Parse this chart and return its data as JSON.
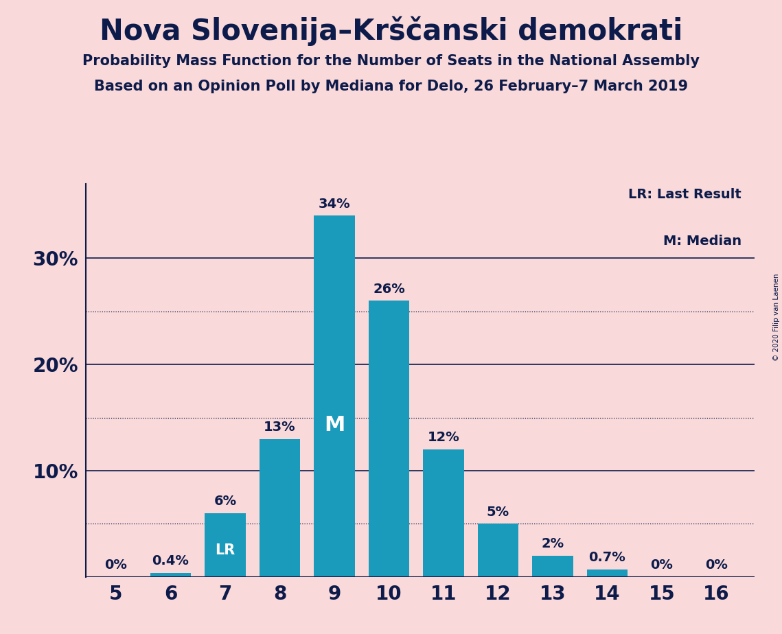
{
  "title": "Nova Slovenija–Krščanski demokrati",
  "subtitle1": "Probability Mass Function for the Number of Seats in the National Assembly",
  "subtitle2": "Based on an Opinion Poll by Mediana for Delo, 26 February–7 March 2019",
  "copyright": "© 2020 Filip van Laenen",
  "seats": [
    5,
    6,
    7,
    8,
    9,
    10,
    11,
    12,
    13,
    14,
    15,
    16
  ],
  "probabilities": [
    0.0,
    0.4,
    6.0,
    13.0,
    34.0,
    26.0,
    12.0,
    5.0,
    2.0,
    0.7,
    0.0,
    0.0
  ],
  "bar_color": "#1a9bbc",
  "background_color": "#f9d9d9",
  "text_color": "#0d1b4b",
  "median_seat": 9,
  "lr_seat": 7,
  "label_formats": [
    "0%",
    "0.4%",
    "6%",
    "13%",
    "34%",
    "26%",
    "12%",
    "5%",
    "2%",
    "0.7%",
    "0%",
    "0%"
  ],
  "grid_solid": [
    10,
    20,
    30
  ],
  "grid_dotted": [
    5,
    15,
    25
  ],
  "ylim": [
    0,
    37
  ]
}
